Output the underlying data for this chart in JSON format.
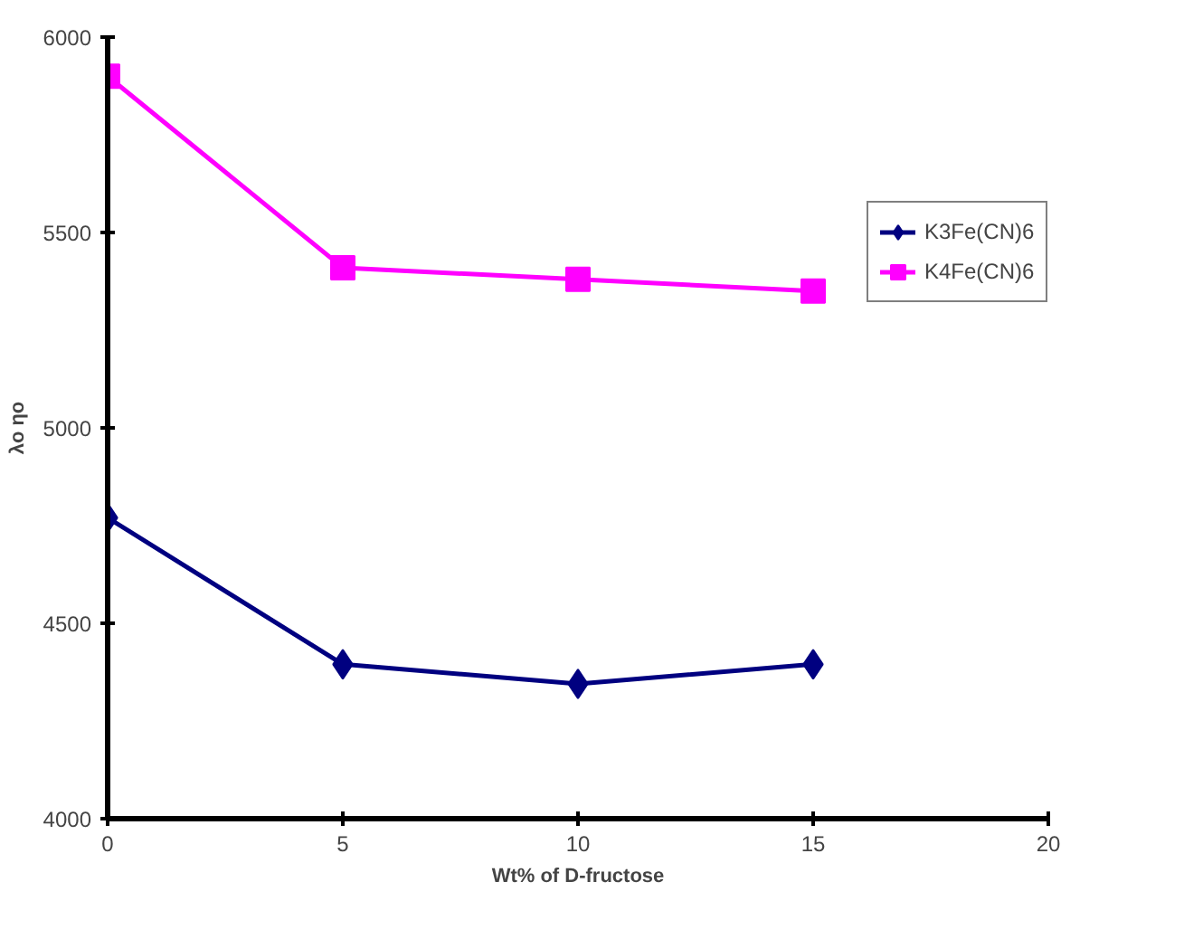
{
  "chart_data": {
    "type": "line",
    "xlabel": "Wt% of D-fructose",
    "ylabel": "λo ηo",
    "x": [
      0,
      5,
      10,
      15
    ],
    "series": [
      {
        "name": "K3Fe(CN)6",
        "color": "#000080",
        "marker": "diamond",
        "values": [
          4770,
          4395,
          4345,
          4395
        ]
      },
      {
        "name": "K4Fe(CN)6",
        "color": "#ff00ff",
        "marker": "square",
        "values": [
          5900,
          5410,
          5380,
          5350
        ]
      }
    ],
    "xlim": [
      0,
      20
    ],
    "xticks": [
      0,
      5,
      10,
      15,
      20
    ],
    "ylim": [
      4000,
      6000
    ],
    "yticks": [
      4000,
      4500,
      5000,
      5500,
      6000
    ],
    "grid": false,
    "legend": "right",
    "line_style": "solid"
  }
}
